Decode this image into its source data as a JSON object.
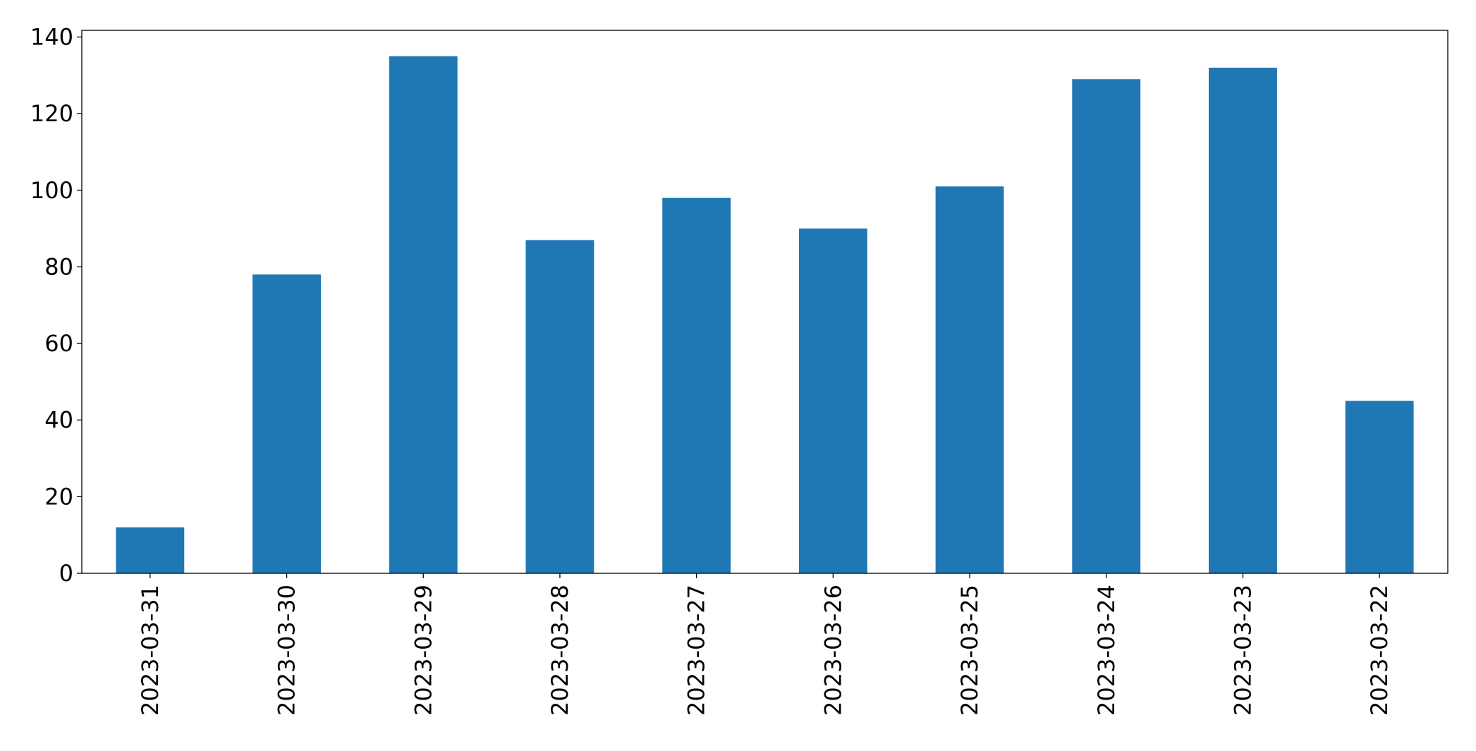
{
  "chart_data": {
    "type": "bar",
    "categories": [
      "2023-03-31",
      "2023-03-30",
      "2023-03-29",
      "2023-03-28",
      "2023-03-27",
      "2023-03-26",
      "2023-03-25",
      "2023-03-24",
      "2023-03-23",
      "2023-03-22"
    ],
    "values": [
      12,
      78,
      135,
      87,
      98,
      90,
      101,
      129,
      132,
      45
    ],
    "color": "#1f77b4",
    "ylim": [
      0,
      141.75
    ],
    "yticks": [
      0,
      20,
      40,
      60,
      80,
      100,
      120,
      140
    ],
    "grid": false
  }
}
